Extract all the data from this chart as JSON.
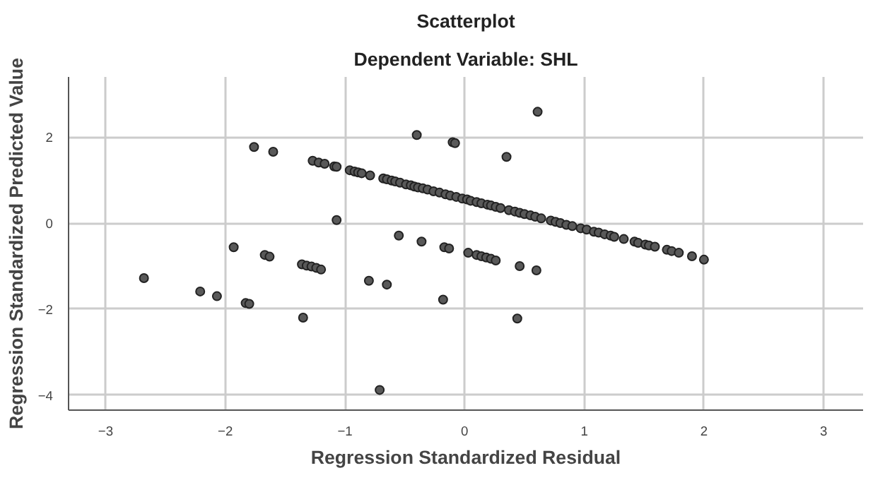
{
  "chart_data": {
    "type": "scatter",
    "title": "Scatterplot",
    "subtitle": "Dependent Variable: SHL",
    "xlabel": "Regression Standardized Residual",
    "ylabel": "Regression Standardized Predicted Value",
    "xlim": [
      -3.31,
      3.33
    ],
    "ylim": [
      -4.35,
      3.4
    ],
    "xticks": [
      -3,
      -2,
      -1,
      0,
      1,
      2,
      3
    ],
    "yticks": [
      -4,
      -2,
      0,
      2
    ],
    "grid": true,
    "marker": "circle",
    "series": [
      {
        "color": "#595959",
        "x": [
          -1.27,
          -1.22,
          -1.17,
          -1.09,
          -1.07,
          -0.96,
          -0.92,
          -0.89,
          -0.86,
          -0.79,
          -0.68,
          -0.65,
          -0.61,
          -0.58,
          -0.54,
          -0.49,
          -0.45,
          -0.42,
          -0.39,
          -0.35,
          -0.31,
          -0.26,
          -0.21,
          -0.16,
          -0.12,
          -0.07,
          -0.02,
          0.02,
          0.05,
          0.1,
          0.14,
          0.19,
          0.22,
          0.26,
          0.3,
          0.37,
          0.42,
          0.46,
          0.5,
          0.55,
          0.59,
          0.64,
          0.72,
          0.76,
          0.8,
          0.85,
          0.9,
          0.97,
          1.02,
          1.08,
          1.12,
          1.17,
          1.22,
          1.25,
          1.33,
          1.42,
          1.45,
          1.51,
          1.54,
          1.59,
          1.69,
          1.73,
          1.79,
          1.9,
          2.0,
          -1.76,
          -1.6,
          -0.4,
          -0.1,
          -0.08,
          0.35,
          0.61,
          -1.07,
          -1.93,
          -1.67,
          -1.63,
          -1.36,
          -1.32,
          -1.28,
          -1.24,
          -1.2,
          -2.68,
          -0.8,
          -0.65,
          -0.55,
          -0.36,
          -0.17,
          -0.13,
          0.03,
          0.1,
          0.14,
          0.18,
          0.22,
          0.26,
          0.46,
          0.6,
          -2.21,
          -2.07,
          -1.83,
          -1.8,
          -1.35,
          -0.18,
          -0.71,
          0.44
        ],
        "values": [
          1.45,
          1.41,
          1.38,
          1.32,
          1.31,
          1.23,
          1.2,
          1.18,
          1.16,
          1.11,
          1.04,
          1.02,
          0.99,
          0.97,
          0.94,
          0.9,
          0.88,
          0.85,
          0.83,
          0.81,
          0.78,
          0.74,
          0.71,
          0.67,
          0.64,
          0.61,
          0.57,
          0.55,
          0.52,
          0.49,
          0.46,
          0.43,
          0.41,
          0.38,
          0.35,
          0.3,
          0.27,
          0.24,
          0.21,
          0.18,
          0.15,
          0.11,
          0.06,
          0.03,
          0.0,
          -0.04,
          -0.07,
          -0.12,
          -0.15,
          -0.2,
          -0.22,
          -0.26,
          -0.29,
          -0.32,
          -0.37,
          -0.43,
          -0.46,
          -0.5,
          -0.52,
          -0.55,
          -0.62,
          -0.65,
          -0.69,
          -0.77,
          -0.85,
          1.77,
          1.66,
          2.05,
          1.88,
          1.86,
          1.54,
          2.59,
          0.07,
          -0.56,
          -0.74,
          -0.78,
          -0.96,
          -0.99,
          -1.01,
          -1.04,
          -1.08,
          -1.28,
          -1.34,
          -1.43,
          -0.29,
          -0.43,
          -0.56,
          -0.59,
          -0.69,
          -0.74,
          -0.77,
          -0.8,
          -0.83,
          -0.87,
          -1.0,
          -1.1,
          -1.59,
          -1.7,
          -1.86,
          -1.88,
          -2.2,
          -1.78,
          -3.88,
          -2.22
        ]
      }
    ]
  }
}
